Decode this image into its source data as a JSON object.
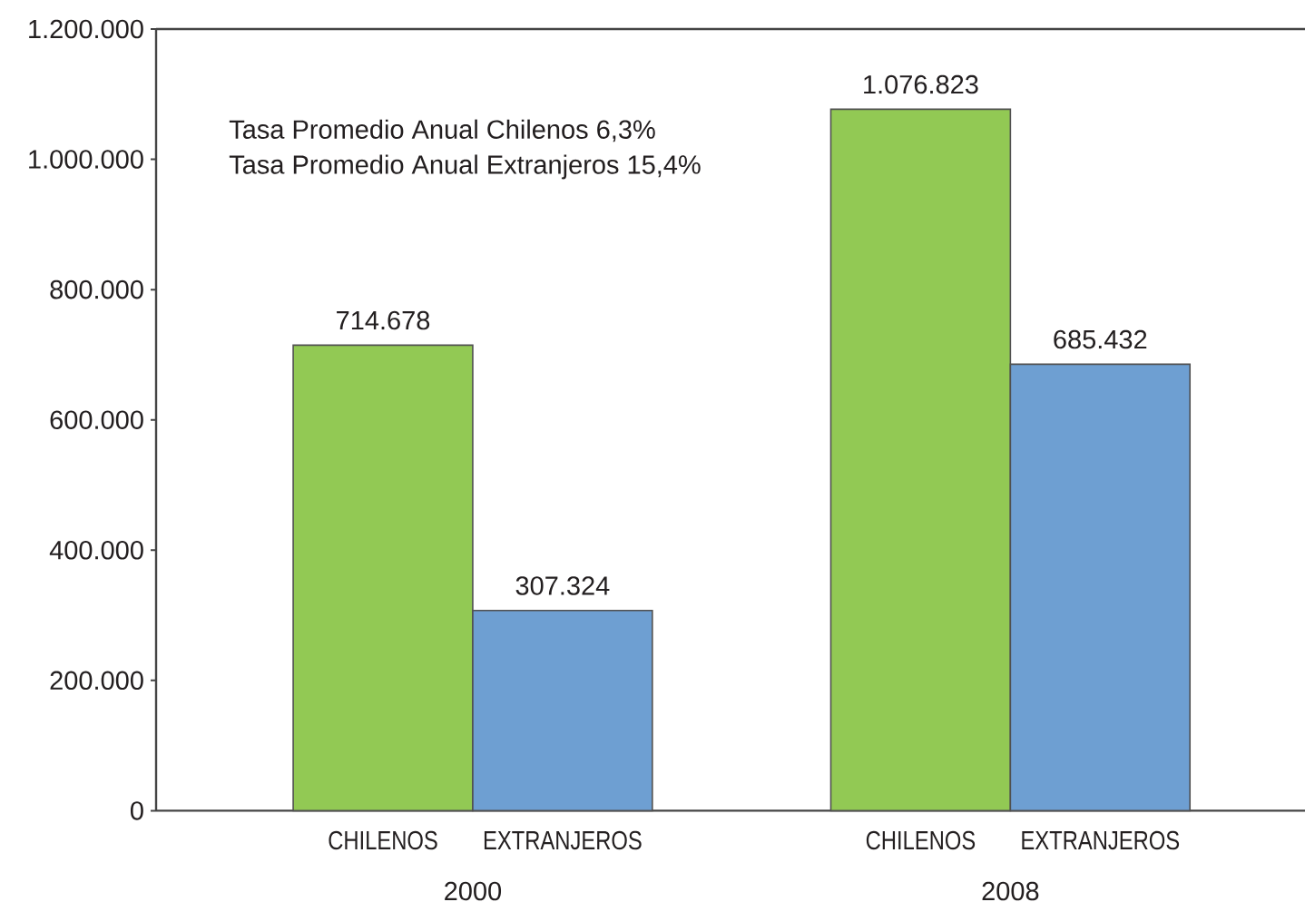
{
  "chart_data": {
    "type": "bar",
    "categories": [
      "2000",
      "2008"
    ],
    "series": [
      {
        "name": "CHILENOS",
        "color": "#92c954",
        "values": [
          714678,
          1076823
        ],
        "value_labels": [
          "714.678",
          "1.076.823"
        ]
      },
      {
        "name": "EXTRANJEROS",
        "color": "#6e9fd2",
        "values": [
          307324,
          685432
        ],
        "value_labels": [
          "307.324",
          "685.432"
        ]
      }
    ],
    "ylim": [
      0,
      1200000
    ],
    "yticks": [
      0,
      {
        "value": 200000,
        "label": "200.000"
      },
      {
        "value": 400000,
        "label": "400.000"
      },
      {
        "value": 600000,
        "label": "600.000"
      },
      {
        "value": 800000,
        "label": "800.000"
      },
      {
        "value": 1000000,
        "label": "1.000.000"
      },
      {
        "value": 1200000,
        "label": "1.200.000"
      }
    ],
    "annotations": [
      "Tasa Promedio Anual Chilenos 6,3%",
      "Tasa Promedio Anual Extranjeros 15,4%"
    ]
  }
}
